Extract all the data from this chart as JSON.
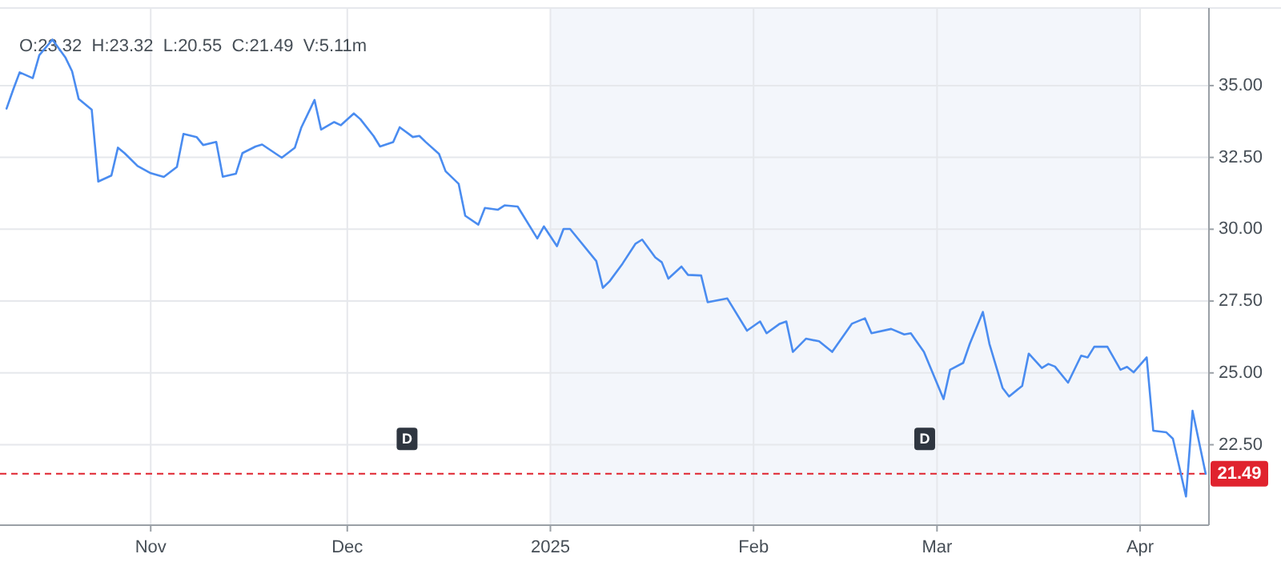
{
  "chart_data": {
    "type": "line",
    "x": [
      "2024-10-10",
      "2024-10-11",
      "2024-10-12",
      "2024-10-14",
      "2024-10-15",
      "2024-10-17",
      "2024-10-19",
      "2024-10-20",
      "2024-10-21",
      "2024-10-23",
      "2024-10-24",
      "2024-10-26",
      "2024-10-27",
      "2024-10-28",
      "2024-10-30",
      "2024-11-01",
      "2024-11-03",
      "2024-11-05",
      "2024-11-06",
      "2024-11-08",
      "2024-11-09",
      "2024-11-11",
      "2024-11-12",
      "2024-11-14",
      "2024-11-15",
      "2024-11-17",
      "2024-11-18",
      "2024-11-21",
      "2024-11-23",
      "2024-11-24",
      "2024-11-26",
      "2024-11-27",
      "2024-11-29",
      "2024-11-30",
      "2024-12-02",
      "2024-12-03",
      "2024-12-05",
      "2024-12-06",
      "2024-12-08",
      "2024-12-09",
      "2024-12-11",
      "2024-12-12",
      "2024-12-13",
      "2024-12-15",
      "2024-12-16",
      "2024-12-18",
      "2024-12-19",
      "2024-12-21",
      "2024-12-22",
      "2024-12-24",
      "2024-12-25",
      "2024-12-27",
      "2024-12-30",
      "2024-12-31",
      "2025-01-02",
      "2025-01-03",
      "2025-01-04",
      "2025-01-08",
      "2025-01-09",
      "2025-01-10",
      "2025-01-12",
      "2025-01-14",
      "2025-01-15",
      "2025-01-17",
      "2025-01-18",
      "2025-01-19",
      "2025-01-21",
      "2025-01-22",
      "2025-01-24",
      "2025-01-25",
      "2025-01-28",
      "2025-01-31",
      "2025-02-02",
      "2025-02-03",
      "2025-02-05",
      "2025-02-06",
      "2025-02-07",
      "2025-02-09",
      "2025-02-11",
      "2025-02-13",
      "2025-02-16",
      "2025-02-18",
      "2025-02-19",
      "2025-02-22",
      "2025-02-24",
      "2025-02-25",
      "2025-02-27",
      "2025-03-02",
      "2025-03-03",
      "2025-03-05",
      "2025-03-06",
      "2025-03-08",
      "2025-03-09",
      "2025-03-11",
      "2025-03-12",
      "2025-03-14",
      "2025-03-15",
      "2025-03-17",
      "2025-03-18",
      "2025-03-19",
      "2025-03-21",
      "2025-03-23",
      "2025-03-24",
      "2025-03-25",
      "2025-03-27",
      "2025-03-29",
      "2025-03-30",
      "2025-03-31",
      "2025-04-02",
      "2025-04-03",
      "2025-04-05",
      "2025-04-06",
      "2025-04-08",
      "2025-04-09",
      "2025-04-11"
    ],
    "series": [
      {
        "color": "#4a8cf0",
        "values": [
          34.2,
          34.85,
          35.46,
          35.26,
          36.06,
          36.6,
          35.97,
          35.5,
          34.54,
          34.16,
          31.66,
          31.87,
          32.84,
          32.65,
          32.2,
          31.95,
          31.82,
          32.17,
          33.32,
          33.21,
          32.93,
          33.04,
          31.83,
          31.93,
          32.65,
          32.88,
          32.95,
          32.49,
          32.84,
          33.55,
          34.5,
          33.47,
          33.73,
          33.62,
          34.03,
          33.83,
          33.25,
          32.88,
          33.03,
          33.55,
          33.21,
          33.25,
          33.03,
          32.62,
          32.02,
          31.58,
          30.47,
          30.16,
          30.74,
          30.68,
          30.83,
          30.79,
          29.68,
          30.1,
          29.41,
          30.01,
          30.01,
          28.89,
          27.96,
          28.18,
          28.8,
          29.5,
          29.64,
          29.02,
          28.85,
          28.28,
          28.7,
          28.41,
          28.39,
          27.46,
          27.59,
          26.47,
          26.79,
          26.38,
          26.71,
          26.79,
          25.73,
          26.19,
          26.1,
          25.73,
          26.71,
          26.9,
          26.38,
          26.53,
          26.34,
          26.38,
          25.73,
          24.09,
          25.11,
          25.35,
          26.01,
          27.12,
          26.01,
          24.48,
          24.18,
          24.55,
          25.67,
          25.17,
          25.31,
          25.22,
          24.66,
          25.6,
          25.54,
          25.91,
          25.91,
          25.11,
          25.21,
          25.02,
          25.54,
          22.99,
          22.93,
          22.71,
          20.7,
          23.68,
          21.49
        ]
      }
    ],
    "xlim": [
      "2024-10-09",
      "2025-04-11T12:00"
    ],
    "xticks": [
      {
        "value": "2024-11-01",
        "label": "Nov"
      },
      {
        "value": "2024-12-01",
        "label": "Dec"
      },
      {
        "value": "2025-01-01",
        "label": "2025"
      },
      {
        "value": "2025-02-01",
        "label": "Feb"
      },
      {
        "value": "2025-03-01",
        "label": "Mar"
      },
      {
        "value": "2025-04-01",
        "label": "Apr"
      }
    ],
    "ylim": [
      19.7,
      37.7
    ],
    "yticks": [
      {
        "value": 22.5,
        "label": "22.50"
      },
      {
        "value": 25,
        "label": "25.00"
      },
      {
        "value": 27.5,
        "label": "27.50"
      },
      {
        "value": 30,
        "label": "30.00"
      },
      {
        "value": 32.5,
        "label": "32.50"
      },
      {
        "value": 35,
        "label": "35.00"
      }
    ],
    "grid": true,
    "bands": [
      {
        "axis": "x",
        "from": "2025-01-01",
        "to": "2025-04-01",
        "color": "#f3f6fb"
      }
    ],
    "ref_lines": [
      {
        "axis": "y",
        "value": 21.49,
        "label": "21.49",
        "color": "#e0232e",
        "line_style": "dashed"
      }
    ],
    "annotations": [
      "O:23.32  H:23.32  L:20.55  C:21.49  V:5.11m",
      {
        "text": "D",
        "x": "2024-12-10",
        "y": 22.7
      },
      {
        "text": "D",
        "x": "2025-02-27",
        "y": 22.7
      }
    ]
  }
}
